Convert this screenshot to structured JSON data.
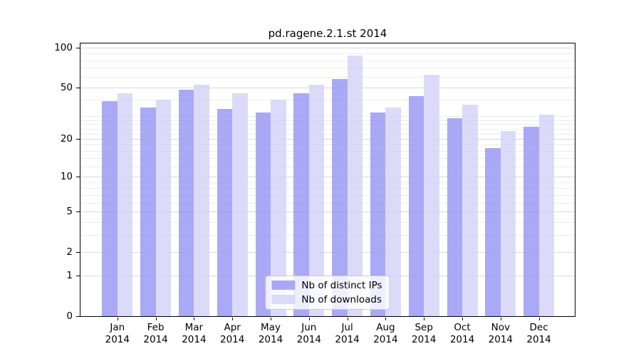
{
  "chart_data": {
    "type": "bar",
    "title": "pd.ragene.2.1.st 2014",
    "categories": [
      "Jan",
      "Feb",
      "Mar",
      "Apr",
      "May",
      "Jun",
      "Jul",
      "Aug",
      "Sep",
      "Oct",
      "Nov",
      "Dec"
    ],
    "category_year": "2014",
    "series": [
      {
        "name": "Nb of distinct IPs",
        "color": "rgba(148,148,244,0.8)",
        "values": [
          39,
          35,
          48,
          34,
          32,
          45,
          58,
          32,
          43,
          29,
          17,
          25
        ]
      },
      {
        "name": "Nb of downloads",
        "color": "rgba(210,210,248,0.8)",
        "values": [
          45,
          40,
          52,
          45,
          40,
          52,
          87,
          35,
          62,
          37,
          23,
          31
        ]
      }
    ],
    "y_scale": "log1p",
    "ylim": [
      0,
      108
    ],
    "y_ticks": [
      0,
      1,
      2,
      5,
      10,
      20,
      50,
      100
    ],
    "minor_gridlines": [
      3,
      4,
      6,
      7,
      8,
      9,
      12,
      14,
      16,
      18,
      22,
      24,
      26,
      28,
      30,
      40,
      60,
      70,
      80,
      90
    ],
    "grid": true,
    "legend_position": "lower center",
    "colors": {
      "grid_major": "#d9d9d9",
      "grid_minor": "#ececec",
      "axis": "#000000",
      "text": "#000000",
      "legend_border": "#cccccc"
    }
  }
}
